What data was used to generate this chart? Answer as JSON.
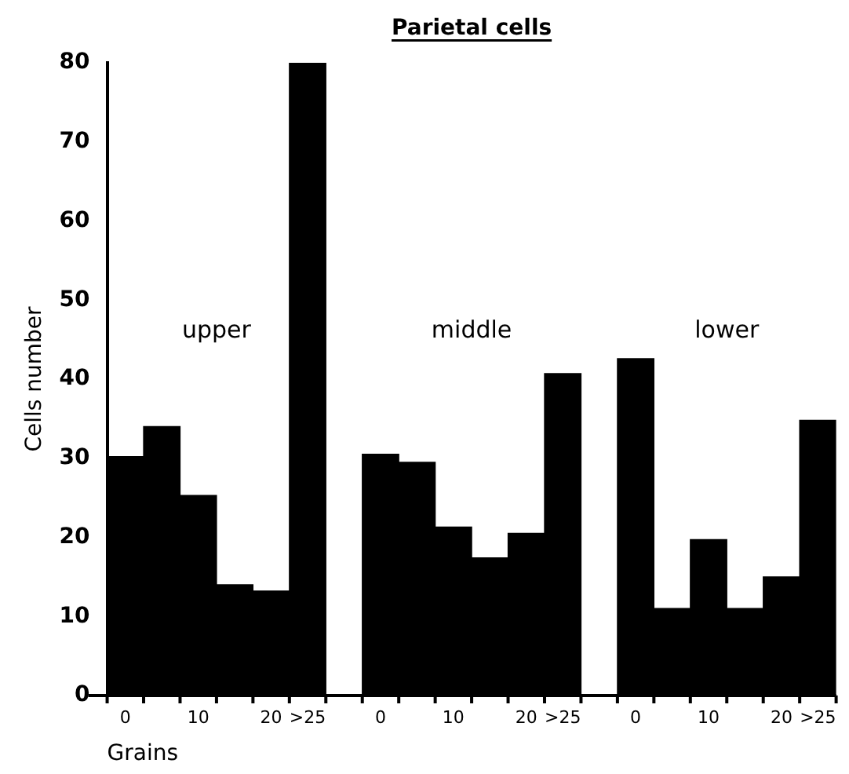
{
  "chart_data": {
    "type": "bar",
    "title": "Parietal cells",
    "xlabel": "Grains",
    "ylabel": "Cells number",
    "categories": [
      "0",
      null,
      "10",
      null,
      "20",
      ">25",
      null,
      "0",
      null,
      "10",
      null,
      "20",
      ">25",
      null,
      "0",
      null,
      "10",
      null,
      "20",
      ">25"
    ],
    "values": [
      30.2,
      34,
      25.3,
      14,
      13.2,
      80,
      null,
      30.5,
      29.5,
      21.3,
      17.4,
      20.5,
      40.7,
      null,
      42.6,
      11,
      19.7,
      11,
      15,
      34.8
    ],
    "color": "#000000",
    "annotations": [
      "upper",
      "middle",
      "lower"
    ],
    "ylim": [
      0,
      80
    ],
    "yticks": [
      0,
      10,
      20,
      30,
      40,
      50,
      60,
      70,
      80
    ],
    "grid": false,
    "legend": false
  }
}
